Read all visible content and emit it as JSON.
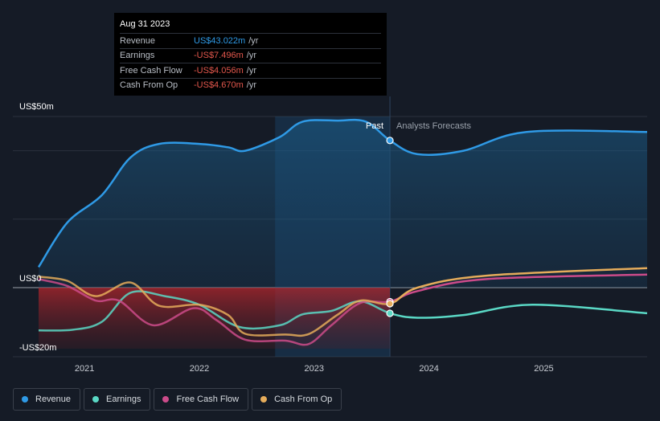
{
  "tooltip": {
    "date": "Aug 31 2023",
    "rows": [
      {
        "label": "Revenue",
        "value": "US$43.022m",
        "unit": "/yr"
      },
      {
        "label": "Earnings",
        "value": "-US$7.496m",
        "unit": "/yr"
      },
      {
        "label": "Free Cash Flow",
        "value": "-US$4.056m",
        "unit": "/yr"
      },
      {
        "label": "Cash From Op",
        "value": "-US$4.670m",
        "unit": "/yr"
      }
    ]
  },
  "colors": {
    "background": "#151b26",
    "revenue": "#2f9ae6",
    "earnings": "#5ad8c5",
    "free_cash_flow": "#cc4b8a",
    "cash_from_op": "#e5ac5b"
  },
  "chart_data": {
    "type": "line",
    "y_labels": [
      "US$50m",
      "US$0",
      "-US$20m"
    ],
    "x_ticks": [
      "2021",
      "2022",
      "2023",
      "2024",
      "2025"
    ],
    "ylim": [
      -20,
      50
    ],
    "past_label": "Past",
    "forecast_label": "Analysts Forecasts",
    "divider_x": 2023.66,
    "series": [
      {
        "name": "Revenue",
        "color": "#2f9ae6",
        "x": [
          2020.6,
          2020.85,
          2021.15,
          2021.4,
          2021.65,
          2022.0,
          2022.25,
          2022.4,
          2022.7,
          2022.9,
          2023.2,
          2023.45,
          2023.66,
          2023.9,
          2024.3,
          2024.85,
          2025.9
        ],
        "y": [
          6,
          19,
          27,
          38,
          42,
          42,
          41,
          40,
          44,
          48.5,
          48.8,
          48.5,
          43.0,
          39,
          40,
          45.5,
          45.5
        ]
      },
      {
        "name": "Earnings",
        "color": "#5ad8c5",
        "x": [
          2020.6,
          2020.9,
          2021.15,
          2021.4,
          2021.7,
          2022.0,
          2022.35,
          2022.7,
          2022.9,
          2023.15,
          2023.4,
          2023.66,
          2023.9,
          2024.3,
          2024.9,
          2025.9
        ],
        "y": [
          -12.5,
          -12.3,
          -10,
          -1.5,
          -2.5,
          -5,
          -11.5,
          -11,
          -7.8,
          -6.8,
          -4,
          -7.5,
          -8.8,
          -8,
          -5,
          -7.5
        ]
      },
      {
        "name": "Free Cash Flow",
        "color": "#cc4b8a",
        "x": [
          2020.6,
          2020.85,
          2021.1,
          2021.3,
          2021.6,
          2021.95,
          2022.15,
          2022.4,
          2022.75,
          2022.95,
          2023.15,
          2023.4,
          2023.66,
          2023.9,
          2024.5,
          2025.9
        ],
        "y": [
          2.5,
          0.5,
          -3.8,
          -3.8,
          -11,
          -6,
          -9.5,
          -15.2,
          -15.5,
          -16.5,
          -11,
          -4.5,
          -4.1,
          -1,
          2.5,
          3.8
        ]
      },
      {
        "name": "Cash From Op",
        "color": "#e5ac5b",
        "x": [
          2020.6,
          2020.85,
          2021.1,
          2021.4,
          2021.65,
          2022.0,
          2022.25,
          2022.4,
          2022.75,
          2022.95,
          2023.2,
          2023.4,
          2023.66,
          2023.9,
          2024.5,
          2025.9
        ],
        "y": [
          3.2,
          2,
          -2.5,
          1.5,
          -5.3,
          -5,
          -8,
          -13.5,
          -13.7,
          -13.6,
          -8,
          -3.8,
          -4.7,
          0,
          3.5,
          5.7
        ]
      }
    ]
  },
  "legend": [
    {
      "label": "Revenue",
      "color": "#2f9ae6"
    },
    {
      "label": "Earnings",
      "color": "#5ad8c5"
    },
    {
      "label": "Free Cash Flow",
      "color": "#cc4b8a"
    },
    {
      "label": "Cash From Op",
      "color": "#e5ac5b"
    }
  ]
}
